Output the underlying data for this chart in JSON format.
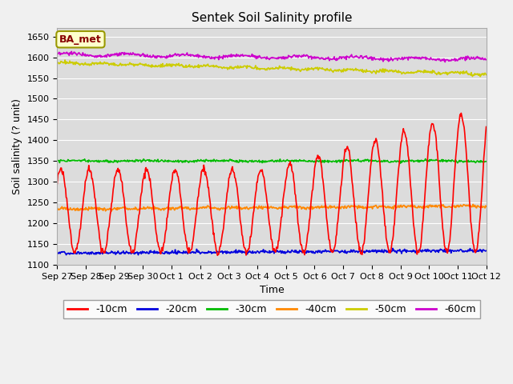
{
  "title": "Sentek Soil Salinity profile",
  "xlabel": "Time",
  "ylabel": "Soil salinity (? unit)",
  "annotation": "BA_met",
  "ylim": [
    1100,
    1670
  ],
  "yticks": [
    1100,
    1150,
    1200,
    1250,
    1300,
    1350,
    1400,
    1450,
    1500,
    1550,
    1600,
    1650
  ],
  "x_labels": [
    "Sep 27",
    "Sep 28",
    "Sep 29",
    "Sep 30",
    "Oct 1",
    "Oct 2",
    "Oct 3",
    "Oct 4",
    "Oct 5",
    "Oct 6",
    "Oct 7",
    "Oct 8",
    "Oct 9",
    "Oct 10",
    "Oct 11",
    "Oct 12"
  ],
  "series": {
    "-10cm": {
      "color": "#ff0000",
      "linewidth": 1.2
    },
    "-20cm": {
      "color": "#0000dd",
      "linewidth": 1.2
    },
    "-30cm": {
      "color": "#00bb00",
      "linewidth": 1.2
    },
    "-40cm": {
      "color": "#ff8800",
      "linewidth": 1.2
    },
    "-50cm": {
      "color": "#cccc00",
      "linewidth": 1.2
    },
    "-60cm": {
      "color": "#cc00cc",
      "linewidth": 1.2
    }
  },
  "fig_bg": "#f0f0f0",
  "plot_bg": "#dcdcdc",
  "grid_color": "#ffffff",
  "title_fontsize": 11,
  "axis_fontsize": 9,
  "legend_fontsize": 9,
  "tick_fontsize": 8
}
